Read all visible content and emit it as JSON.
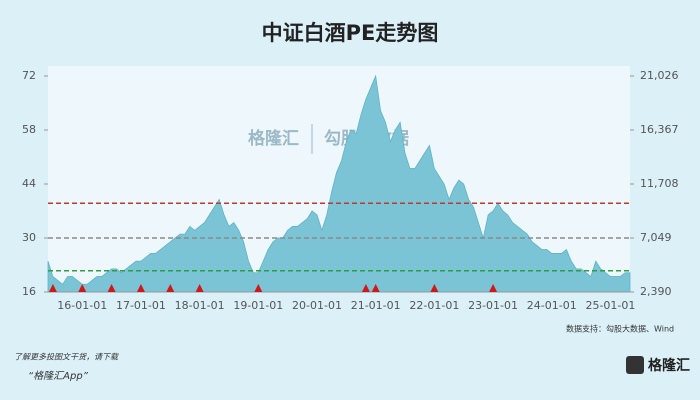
{
  "chart_data": {
    "type": "area",
    "title": "中证白酒PE走势图",
    "watermark": [
      "格隆汇",
      "勾股大数据"
    ],
    "source": "数据支持：勾股大数据、Wind",
    "footer": [
      "了解更多投图文干货，请下载",
      "“格隆汇App”"
    ],
    "logo": "格隆汇",
    "categories": [
      null,
      null,
      null,
      null,
      null,
      null,
      null,
      "16-01-01",
      null,
      null,
      null,
      null,
      null,
      null,
      null,
      null,
      null,
      null,
      null,
      "17-01-01",
      null,
      null,
      null,
      null,
      null,
      null,
      null,
      null,
      null,
      null,
      null,
      "18-01-01",
      null,
      null,
      null,
      null,
      null,
      null,
      null,
      null,
      null,
      null,
      null,
      "19-01-01",
      null,
      null,
      null,
      null,
      null,
      null,
      null,
      null,
      null,
      null,
      null,
      "20-01-01",
      null,
      null,
      null,
      null,
      null,
      null,
      null,
      null,
      null,
      null,
      null,
      "21-01-01",
      null,
      null,
      null,
      null,
      null,
      null,
      null,
      null,
      null,
      null,
      null,
      "22-01-01",
      null,
      null,
      null,
      null,
      null,
      null,
      null,
      null,
      null,
      null,
      null,
      "23-01-01",
      null,
      null,
      null,
      null,
      null,
      null,
      null,
      null,
      null,
      null,
      null,
      "24-01-01",
      null,
      null,
      null,
      null,
      null,
      null,
      null,
      null,
      null,
      null,
      null,
      "25-01-01",
      null,
      null,
      null,
      null
    ],
    "series": [
      {
        "color": "#7ac4d6",
        "values": [
          24,
          20,
          19,
          18,
          20,
          20,
          19,
          18,
          18,
          19,
          20,
          20,
          21,
          22,
          22,
          21,
          22,
          23,
          24,
          24,
          25,
          26,
          26,
          27,
          28,
          29,
          30,
          31,
          31,
          33,
          32,
          33,
          34,
          36,
          38,
          40,
          36,
          33,
          34,
          32,
          29,
          24,
          21,
          21,
          24,
          27,
          29,
          30,
          30,
          32,
          33,
          33,
          34,
          35,
          37,
          36,
          32,
          36,
          42,
          47,
          50,
          55,
          58,
          57,
          62,
          66,
          69,
          72,
          63,
          60,
          55,
          58,
          60,
          52,
          48,
          48,
          50,
          52,
          54,
          48,
          46,
          44,
          40,
          43,
          45,
          44,
          40,
          38,
          34,
          30,
          36,
          37,
          39,
          37,
          36,
          34,
          33,
          32,
          31,
          29,
          28,
          27,
          27,
          26,
          26,
          26,
          27,
          24,
          22,
          22,
          21,
          20,
          24,
          22,
          21,
          20,
          20,
          20,
          21,
          21
        ]
      }
    ],
    "ylim": [
      16,
      72
    ],
    "yticks": [
      16,
      30,
      44,
      58,
      72
    ],
    "y2lim": [
      2390,
      21026
    ],
    "y2ticks": [
      {
        "value": 2390,
        "label": "2,390"
      },
      {
        "value": 7049,
        "label": "7,049"
      },
      {
        "value": 11708,
        "label": "11,708"
      },
      {
        "value": 16367,
        "label": "16,367"
      },
      {
        "value": 21026,
        "label": "21,026"
      }
    ],
    "ref_lines": [
      {
        "value": 39,
        "color": "#c0392b"
      },
      {
        "value": 30,
        "color": "#8a8a8a"
      },
      {
        "value": 21.5,
        "color": "#2e9e45"
      }
    ],
    "markers": [
      1,
      7,
      13,
      19,
      25,
      31,
      43,
      65,
      67,
      79,
      91
    ],
    "marker_color": "#d01818"
  }
}
